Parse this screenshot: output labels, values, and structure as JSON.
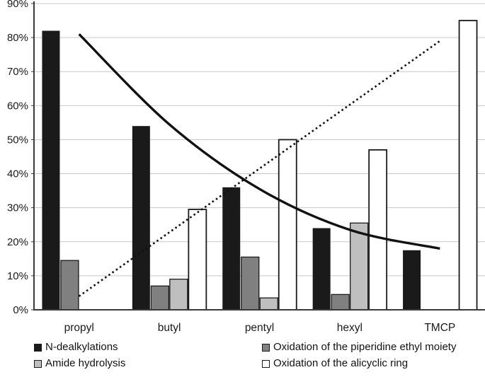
{
  "chart_data": {
    "type": "bar",
    "title": "",
    "xlabel": "",
    "ylabel": "",
    "categories": [
      "propyl",
      "butyl",
      "pentyl",
      "hexyl",
      "TMCP"
    ],
    "series": [
      {
        "name": "N-dealkylations",
        "color": "#1a1a1a",
        "values": [
          82,
          54,
          36,
          24,
          17.5
        ]
      },
      {
        "name": "Oxidation of the piperidine ethyl moiety",
        "color": "#808080",
        "values": [
          14.5,
          7,
          15.5,
          4.5,
          0
        ]
      },
      {
        "name": "Amide hydrolysis",
        "color": "#bfbfbf",
        "values": [
          0,
          9,
          3.5,
          25.5,
          0
        ]
      },
      {
        "name": "Oxidation of the alicyclic ring",
        "color": "#ffffff",
        "values": [
          0,
          29.5,
          50,
          47,
          85
        ]
      }
    ],
    "ylim": [
      0,
      90
    ],
    "ytick_labels": [
      "0%",
      "10%",
      "20%",
      "30%",
      "40%",
      "50%",
      "60%",
      "70%",
      "80%",
      "90%"
    ],
    "grid": true,
    "gridline_color": "#c9c9c9",
    "axis_color": "#3a3a3a",
    "trendlines": [
      {
        "style": "solid",
        "shape": "exponential-decay-curve",
        "color": "#111111",
        "values_at_categories": [
          81,
          54.5,
          35.5,
          23.5,
          18
        ]
      },
      {
        "style": "dotted",
        "shape": "linear-increasing",
        "color": "#111111",
        "values_at_categories": [
          4,
          22.75,
          41.5,
          60.25,
          79
        ]
      }
    ],
    "legend": {
      "position": "bottom",
      "columns": 2,
      "items": [
        {
          "label": "N-dealkylations",
          "color": "#1a1a1a"
        },
        {
          "label": "Oxidation of the piperidine ethyl moiety",
          "color": "#808080"
        },
        {
          "label": "Amide hydrolysis",
          "color": "#bfbfbf"
        },
        {
          "label": "Oxidation of the alicyclic ring",
          "color": "#ffffff"
        }
      ]
    }
  }
}
